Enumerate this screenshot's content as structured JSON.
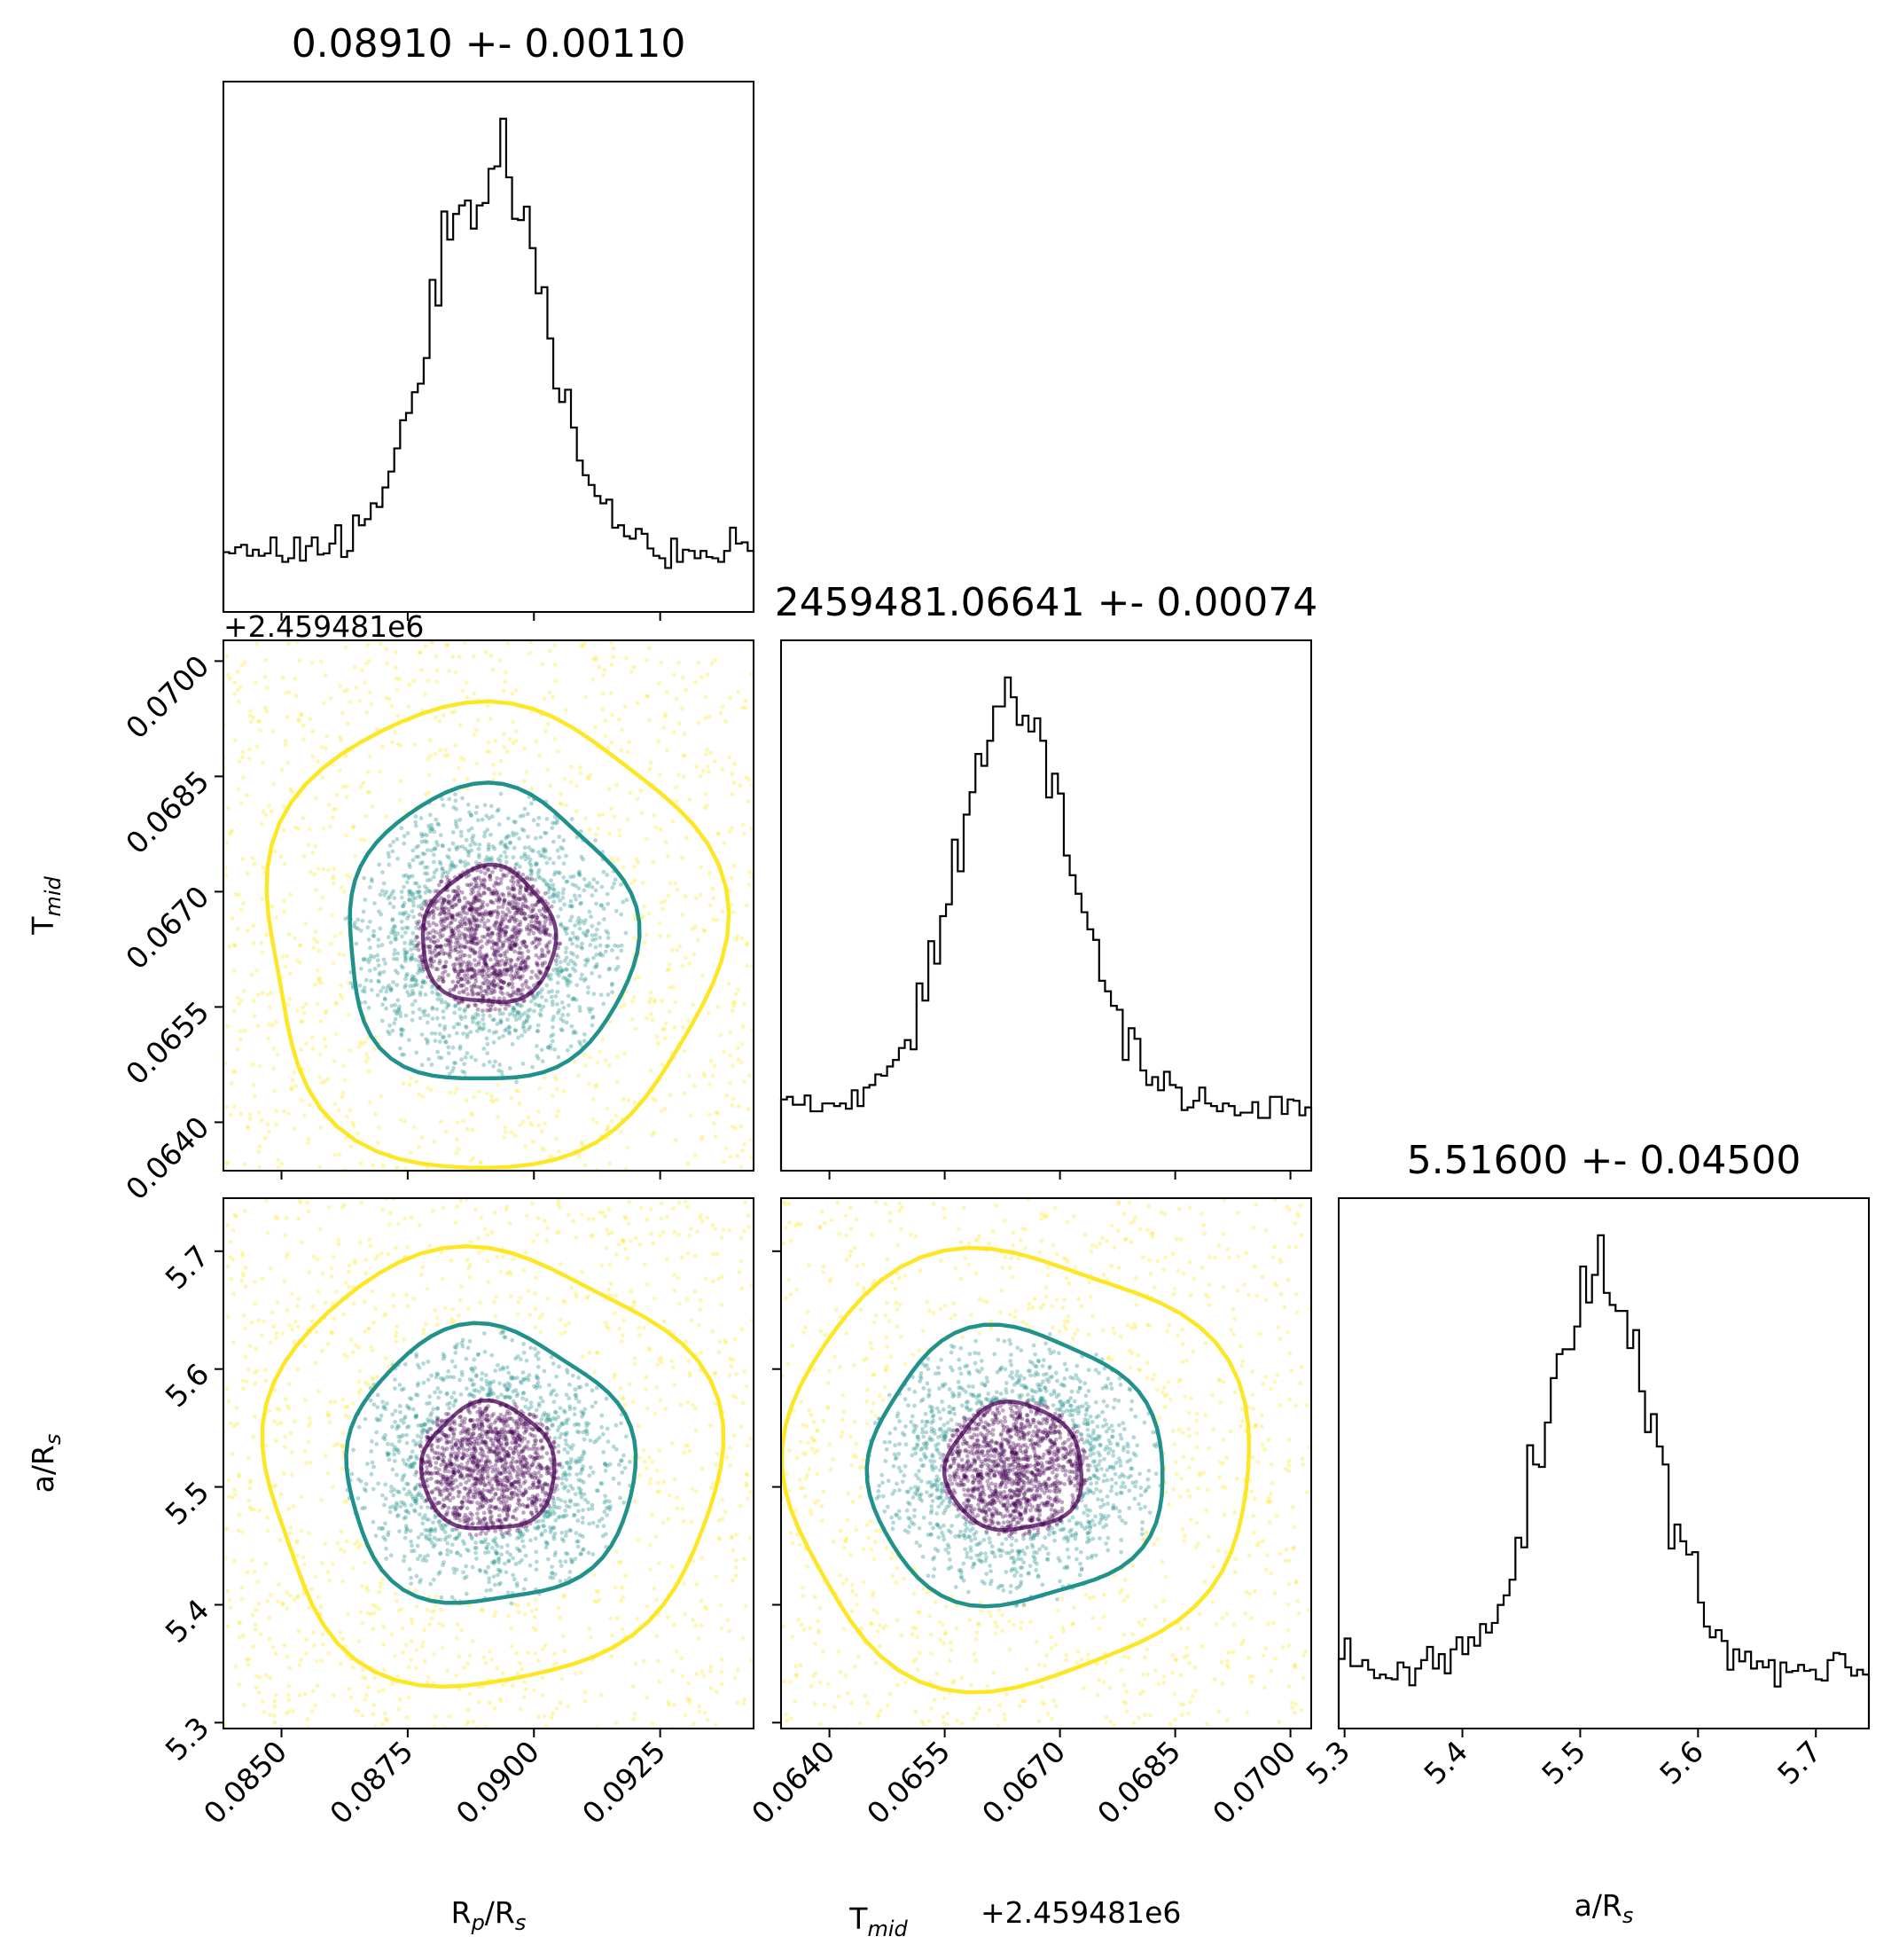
{
  "chart_data": {
    "type": "scatter",
    "kind": "corner-plot",
    "parameters": [
      {
        "name": "Rp/Rs",
        "label_main": "R",
        "label_sub": "p",
        "label_tail": "/R",
        "label_sub2": "s",
        "median": 0.0891,
        "sigma": 0.0011,
        "title": "0.08910 +- 0.00110",
        "range": [
          0.08385,
          0.09435
        ],
        "ticks": [
          "0.0850",
          "0.0875",
          "0.0900",
          "0.0925"
        ],
        "tick_values": [
          0.085,
          0.0875,
          0.09,
          0.0925
        ]
      },
      {
        "name": "Tmid",
        "label_main": "T",
        "label_sub": "mid",
        "label_tail": "",
        "label_sub2": "",
        "median": 0.06641,
        "sigma": 0.00074,
        "title": "2459481.06641 +- 0.00074",
        "offset_label": "+2.459481e6",
        "range": [
          0.06337,
          0.07027
        ],
        "ticks": [
          "0.0640",
          "0.0655",
          "0.0670",
          "0.0685",
          "0.0700"
        ],
        "tick_values": [
          0.064,
          0.0655,
          0.067,
          0.0685,
          0.07
        ]
      },
      {
        "name": "a/Rs",
        "label_main": "a/R",
        "label_sub": "s",
        "label_tail": "",
        "label_sub2": "",
        "median": 5.516,
        "sigma": 0.045,
        "title": "5.51600 +- 0.04500",
        "range": [
          5.295,
          5.745
        ],
        "ticks": [
          "5.3",
          "5.4",
          "5.5",
          "5.6",
          "5.7"
        ],
        "tick_values": [
          5.3,
          5.4,
          5.5,
          5.6,
          5.7
        ]
      }
    ],
    "histogram": {
      "bins": 90,
      "core_fraction": 0.62
    },
    "scatter_colors": {
      "inner": "#440154",
      "middle": "#21918c",
      "outer": "#fde725"
    },
    "contour_levels": [
      "1-sigma",
      "2-sigma",
      "3-sigma"
    ],
    "grid": false,
    "legend": "none"
  }
}
